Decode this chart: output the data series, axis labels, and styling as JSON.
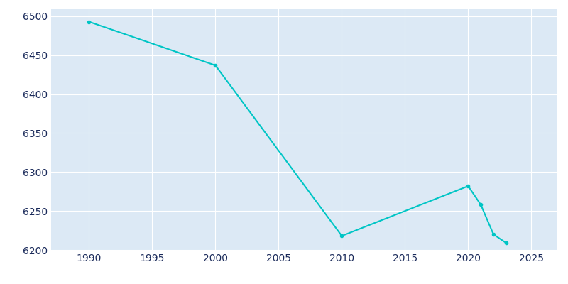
{
  "years": [
    1990,
    2000,
    2010,
    2020,
    2021,
    2022,
    2023
  ],
  "population": [
    6493,
    6437,
    6218,
    6282,
    6258,
    6220,
    6209
  ],
  "line_color": "#00C5C5",
  "marker": "o",
  "marker_size": 3,
  "background_color": "#dce9f5",
  "plot_bg_color": "#dce9f5",
  "outer_bg_color": "#ffffff",
  "grid_color": "#ffffff",
  "tick_color": "#1a2a5a",
  "ylim": [
    6200,
    6510
  ],
  "yticks": [
    6200,
    6250,
    6300,
    6350,
    6400,
    6450,
    6500
  ],
  "xticks": [
    1990,
    1995,
    2000,
    2005,
    2010,
    2015,
    2020,
    2025
  ],
  "xlim": [
    1987,
    2027
  ]
}
